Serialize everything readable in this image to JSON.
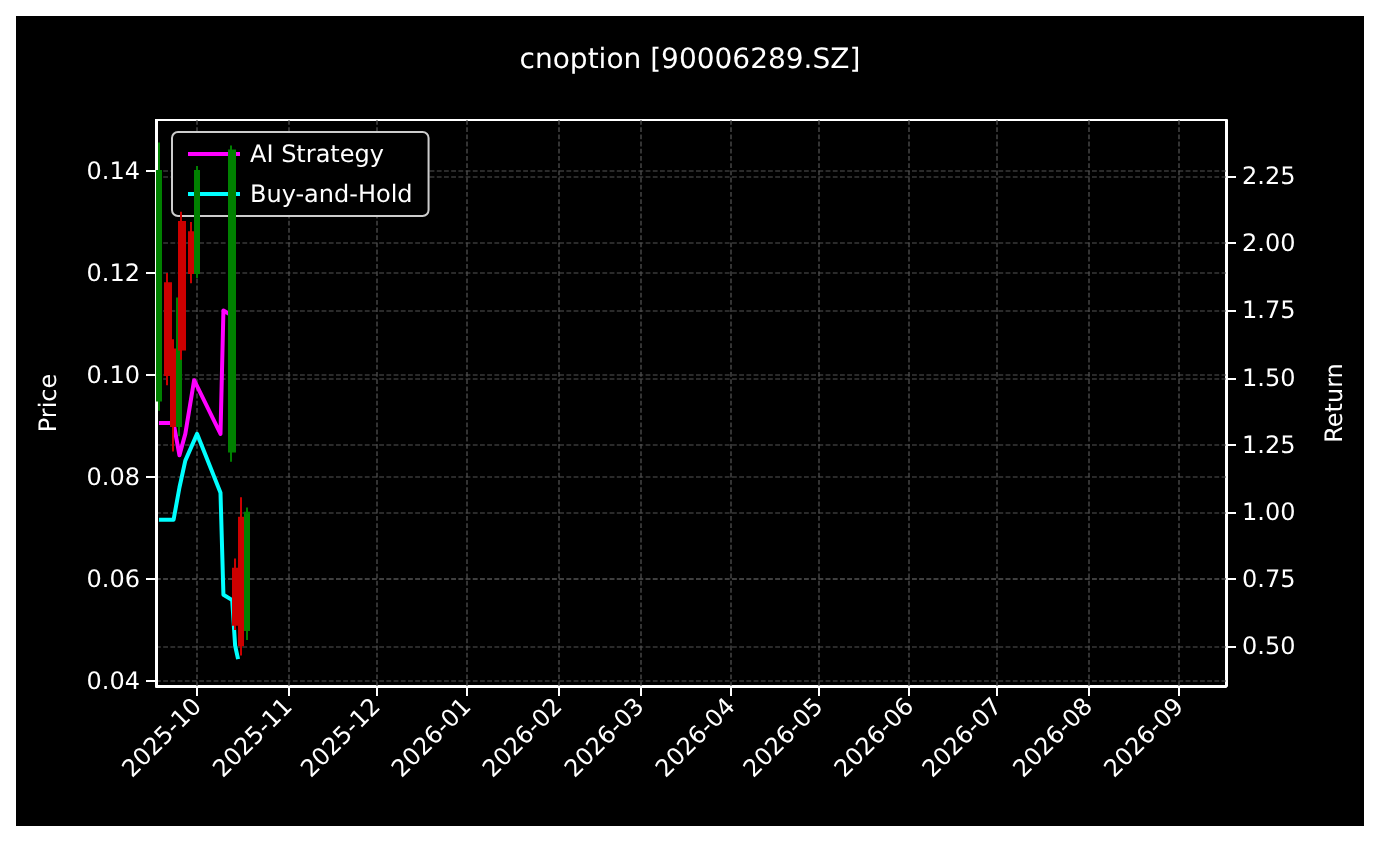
{
  "chart_data": {
    "type": "line",
    "title": "cnoption [90006289.SZ]",
    "ylabel": "Price",
    "y2label": "Return",
    "xlim": [
      "2025-09-17",
      "2026-09-17"
    ],
    "xticks": [
      "2025-10",
      "2025-11",
      "2025-12",
      "2026-01",
      "2026-02",
      "2026-03",
      "2026-04",
      "2026-05",
      "2026-06",
      "2026-07",
      "2026-08",
      "2026-09"
    ],
    "ylim": [
      0.039,
      0.15
    ],
    "yticks": [
      {
        "value": 0.04,
        "label": "0.04"
      },
      {
        "value": 0.06,
        "label": "0.06"
      },
      {
        "value": 0.08,
        "label": "0.08"
      },
      {
        "value": 0.1,
        "label": "0.10"
      },
      {
        "value": 0.12,
        "label": "0.12"
      },
      {
        "value": 0.14,
        "label": "0.14"
      }
    ],
    "y2lim": [
      0.35,
      2.46
    ],
    "y2ticks": [
      {
        "value": 0.5,
        "label": "0.50"
      },
      {
        "value": 0.75,
        "label": "0.75"
      },
      {
        "value": 1,
        "label": "1.00"
      },
      {
        "value": 1.25,
        "label": "1.25"
      },
      {
        "value": 1.5,
        "label": "1.50"
      },
      {
        "value": 1.75,
        "label": "1.75"
      },
      {
        "value": 2,
        "label": "2.00"
      },
      {
        "value": 2.25,
        "label": "2.25"
      }
    ],
    "grid": true,
    "legend": "top left",
    "line_style": "solid",
    "marker": "none",
    "series": [
      {
        "type": "candlestick",
        "x": [
          "2025-09-18",
          "2025-09-21",
          "2025-09-23",
          "2025-09-25",
          "2025-09-26",
          "2025-09-29",
          "2025-10-01",
          "2025-10-13",
          "2025-10-14",
          "2025-10-16",
          "2025-10-18"
        ],
        "ohlc": [
          [
            0.095,
            0.1456,
            0.093,
            0.14
          ],
          [
            0.118,
            0.12,
            0.098,
            0.1
          ],
          [
            0.105,
            0.107,
            0.085,
            0.09
          ],
          [
            0.09,
            0.116,
            0.088,
            0.115
          ],
          [
            0.13,
            0.132,
            0.103,
            0.105
          ],
          [
            0.128,
            0.13,
            0.118,
            0.12
          ],
          [
            0.12,
            0.141,
            0.119,
            0.14
          ],
          [
            0.085,
            0.145,
            0.083,
            0.144
          ],
          [
            0.062,
            0.064,
            0.05,
            0.051
          ],
          [
            0.072,
            0.076,
            0.045,
            0.047
          ],
          [
            0.05,
            0.074,
            0.048,
            0.073
          ]
        ],
        "colors": [
          "#008000",
          "#cc0000",
          "#cc0000",
          "#008000",
          "#cc0000",
          "#cc0000",
          "#008000",
          "#008000",
          "#cc0000",
          "#cc0000",
          "#008000"
        ]
      },
      {
        "name": "AI Strategy",
        "color": "#ff00ff",
        "axis": "y2",
        "x": [
          "2025-09-18",
          "2025-09-23",
          "2025-09-25",
          "2025-09-27",
          "2025-09-30",
          "2025-10-09",
          "2025-10-10",
          "2025-10-13"
        ],
        "values": [
          1.33,
          1.33,
          1.21,
          1.29,
          1.49,
          1.29,
          1.75,
          1.73
        ]
      },
      {
        "name": "Buy-and-Hold",
        "color": "#00ffff",
        "axis": "y2",
        "x": [
          "2025-09-18",
          "2025-09-23",
          "2025-09-25",
          "2025-09-27",
          "2025-10-01",
          "2025-10-09",
          "2025-10-10",
          "2025-10-13",
          "2025-10-14",
          "2025-10-15"
        ],
        "values": [
          0.97,
          0.97,
          1.09,
          1.19,
          1.29,
          1.07,
          0.69,
          0.67,
          0.5,
          0.45
        ]
      }
    ]
  }
}
